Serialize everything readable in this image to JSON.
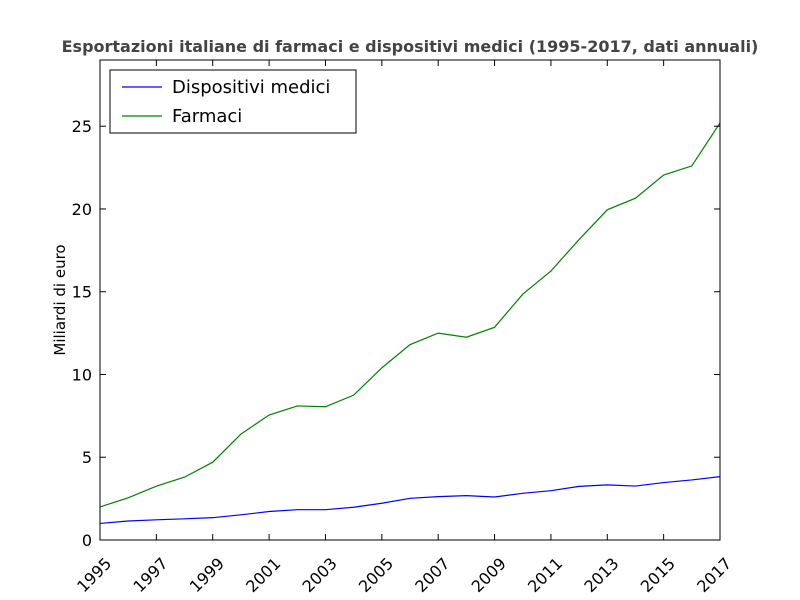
{
  "chart_data": {
    "type": "line",
    "title": "Esportazioni italiane di farmaci e dispositivi medici (1995-2017, dati annuali)",
    "xlabel": "",
    "ylabel": "Miliardi di euro",
    "x": [
      1995,
      1996,
      1997,
      1998,
      1999,
      2000,
      2001,
      2002,
      2003,
      2004,
      2005,
      2006,
      2007,
      2008,
      2009,
      2010,
      2011,
      2012,
      2013,
      2014,
      2015,
      2016,
      2017
    ],
    "xlim": [
      1995,
      2017
    ],
    "ylim": [
      0,
      29
    ],
    "xticks": [
      1995,
      1997,
      1999,
      2001,
      2003,
      2005,
      2007,
      2009,
      2011,
      2013,
      2015,
      2017
    ],
    "yticks": [
      0,
      5,
      10,
      15,
      20,
      25
    ],
    "grid": false,
    "legend_position": "top-left",
    "series": [
      {
        "name": "Dispositivi medici",
        "color": "#0000ff",
        "values": [
          1.0,
          1.15,
          1.22,
          1.28,
          1.35,
          1.52,
          1.72,
          1.83,
          1.83,
          1.98,
          2.22,
          2.52,
          2.62,
          2.68,
          2.6,
          2.82,
          2.98,
          3.24,
          3.33,
          3.26,
          3.47,
          3.63,
          3.83
        ]
      },
      {
        "name": "Farmaci",
        "color": "#008000",
        "values": [
          2.0,
          2.55,
          3.25,
          3.8,
          4.7,
          6.4,
          7.55,
          8.1,
          8.05,
          8.75,
          10.4,
          11.8,
          12.5,
          12.25,
          12.85,
          14.85,
          16.25,
          18.15,
          19.95,
          20.65,
          22.05,
          22.6,
          25.2
        ]
      }
    ]
  }
}
